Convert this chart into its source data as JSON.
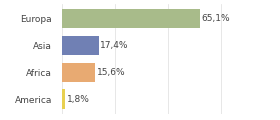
{
  "categories": [
    "Europa",
    "Asia",
    "Africa",
    "America"
  ],
  "values": [
    65.1,
    17.4,
    15.6,
    1.8
  ],
  "labels": [
    "65,1%",
    "17,4%",
    "15,6%",
    "1,8%"
  ],
  "bar_colors": [
    "#a8bb8a",
    "#7080b4",
    "#e8aa72",
    "#e8d050"
  ],
  "xlim": [
    0,
    100
  ],
  "background_color": "#ffffff",
  "label_fontsize": 6.5,
  "tick_fontsize": 6.5,
  "grid_ticks": [
    0,
    25,
    50,
    75,
    100
  ],
  "grid_color": "#dddddd",
  "bar_height": 0.72
}
